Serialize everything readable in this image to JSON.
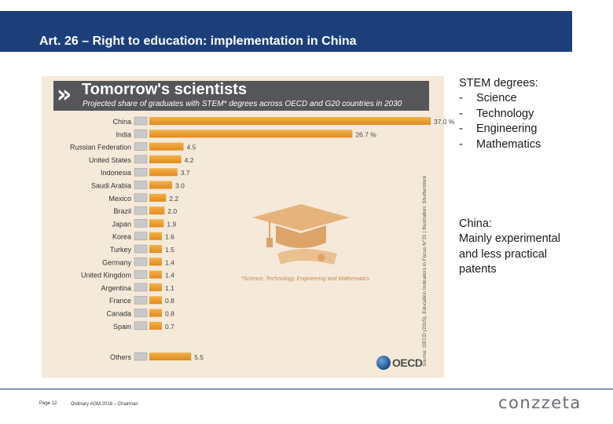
{
  "slide": {
    "title": "Art. 26 – Right to education: implementation in China"
  },
  "chart_data": {
    "type": "bar",
    "orientation": "horizontal",
    "title": "Tomorrow's scientists",
    "subtitle": "Projected share of graduates with STEM* degrees across OECD and G20 countries in 2030",
    "categories": [
      "China",
      "India",
      "Russian Federation",
      "United States",
      "Indonesia",
      "Saudi Arabia",
      "Mexico",
      "Brazil",
      "Japan",
      "Korea",
      "Turkey",
      "Germany",
      "United Kingdom",
      "Argentina",
      "France",
      "Canada",
      "Spain",
      "Others"
    ],
    "values": [
      37.0,
      26.7,
      4.5,
      4.2,
      3.7,
      3.0,
      2.2,
      2.0,
      1.9,
      1.6,
      1.5,
      1.4,
      1.4,
      1.1,
      0.8,
      0.8,
      0.7,
      5.5
    ],
    "value_labels": [
      "37.0 %",
      "26.7 %",
      "4.5",
      "4.2",
      "3.7",
      "3.0",
      "2.2",
      "2.0",
      "1.9",
      "1.6",
      "1.5",
      "1.4",
      "1.4",
      "1.1",
      "0.8",
      "0.8",
      "0.7",
      "5.5"
    ],
    "xlim": [
      0,
      37
    ],
    "grid": false,
    "legend": "none",
    "bar_color": "#e08a1e",
    "footnote": "*Science, Technology, Engineering and Mathematics",
    "source": "Source: OECD (2015), Education Indicators in Focus N°31 | Illustration: Shutterstock",
    "logo_text": "OECD"
  },
  "side_panel": {
    "stem_heading": "STEM degrees:",
    "stem_dash": "-",
    "stem_items": [
      "Science",
      "Technology",
      "Engineering",
      "Mathematics"
    ],
    "china_heading": "China:",
    "china_text": "Mainly experimental and less practical patents"
  },
  "footer": {
    "page": "Page 12",
    "text": "Ordinary AGM 2018 – Chairman",
    "brand": "conzzeta"
  },
  "colors": {
    "header": "#1c3f7c",
    "chart_background": "#f5e9d9",
    "banner": "#555659",
    "bar": "#e08a1e"
  }
}
